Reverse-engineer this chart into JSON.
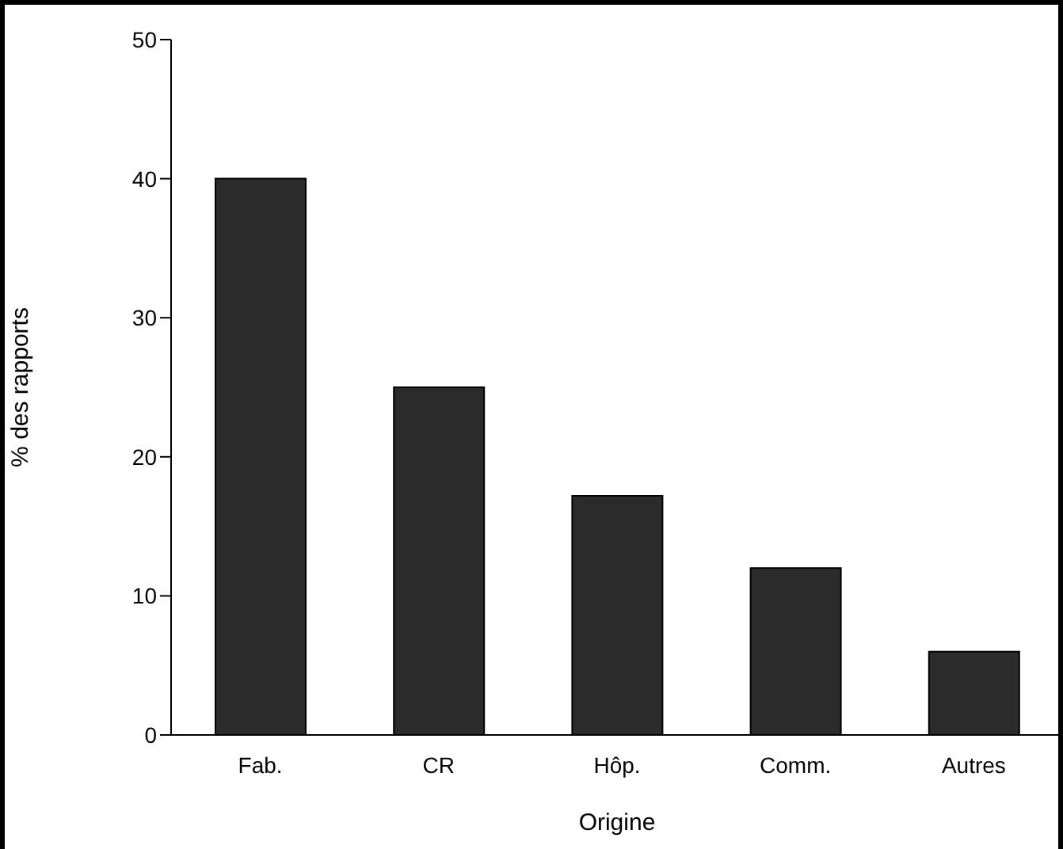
{
  "chart_data": {
    "type": "bar",
    "xlabel": "Origine",
    "ylabel": "% des rapports",
    "categories": [
      "Fab.",
      "CR",
      "Hôp.",
      "Comm.",
      "Autres"
    ],
    "values": [
      40,
      25,
      17.2,
      12,
      6
    ],
    "color": "#2b2b2b",
    "ylim": [
      0,
      50
    ],
    "yticks": [
      0,
      10,
      20,
      30,
      40,
      50
    ],
    "grid": false
  }
}
